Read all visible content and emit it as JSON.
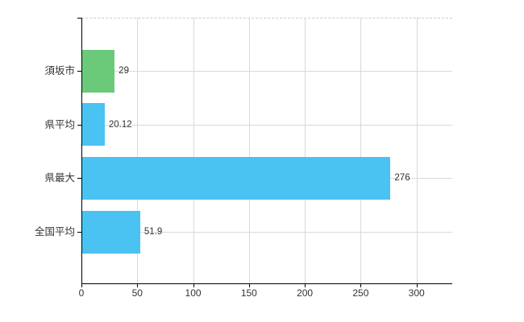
{
  "chart_data": {
    "type": "bar",
    "orientation": "horizontal",
    "title": "",
    "categories": [
      "須坂市",
      "県平均",
      "県最大",
      "全国平均"
    ],
    "values": [
      29,
      20.12,
      276,
      51.9
    ],
    "value_labels": [
      "29",
      "20.12",
      "276",
      "51.9"
    ],
    "bar_colors": [
      "#6bca79",
      "#4ac2f2",
      "#4ac2f2",
      "#4ac2f2"
    ],
    "x_tick_labels": [
      "0",
      "50",
      "100",
      "150",
      "200",
      "250",
      "300"
    ],
    "x_tick_values": [
      0,
      50,
      100,
      150,
      200,
      250,
      300
    ],
    "xlim": [
      0,
      332
    ],
    "grid": true,
    "legend": false,
    "colors": {
      "axis": "#000000",
      "gridline": "#d9d9d9",
      "top_border": "#cccccc",
      "text": "#333333",
      "background": "#ffffff"
    }
  }
}
